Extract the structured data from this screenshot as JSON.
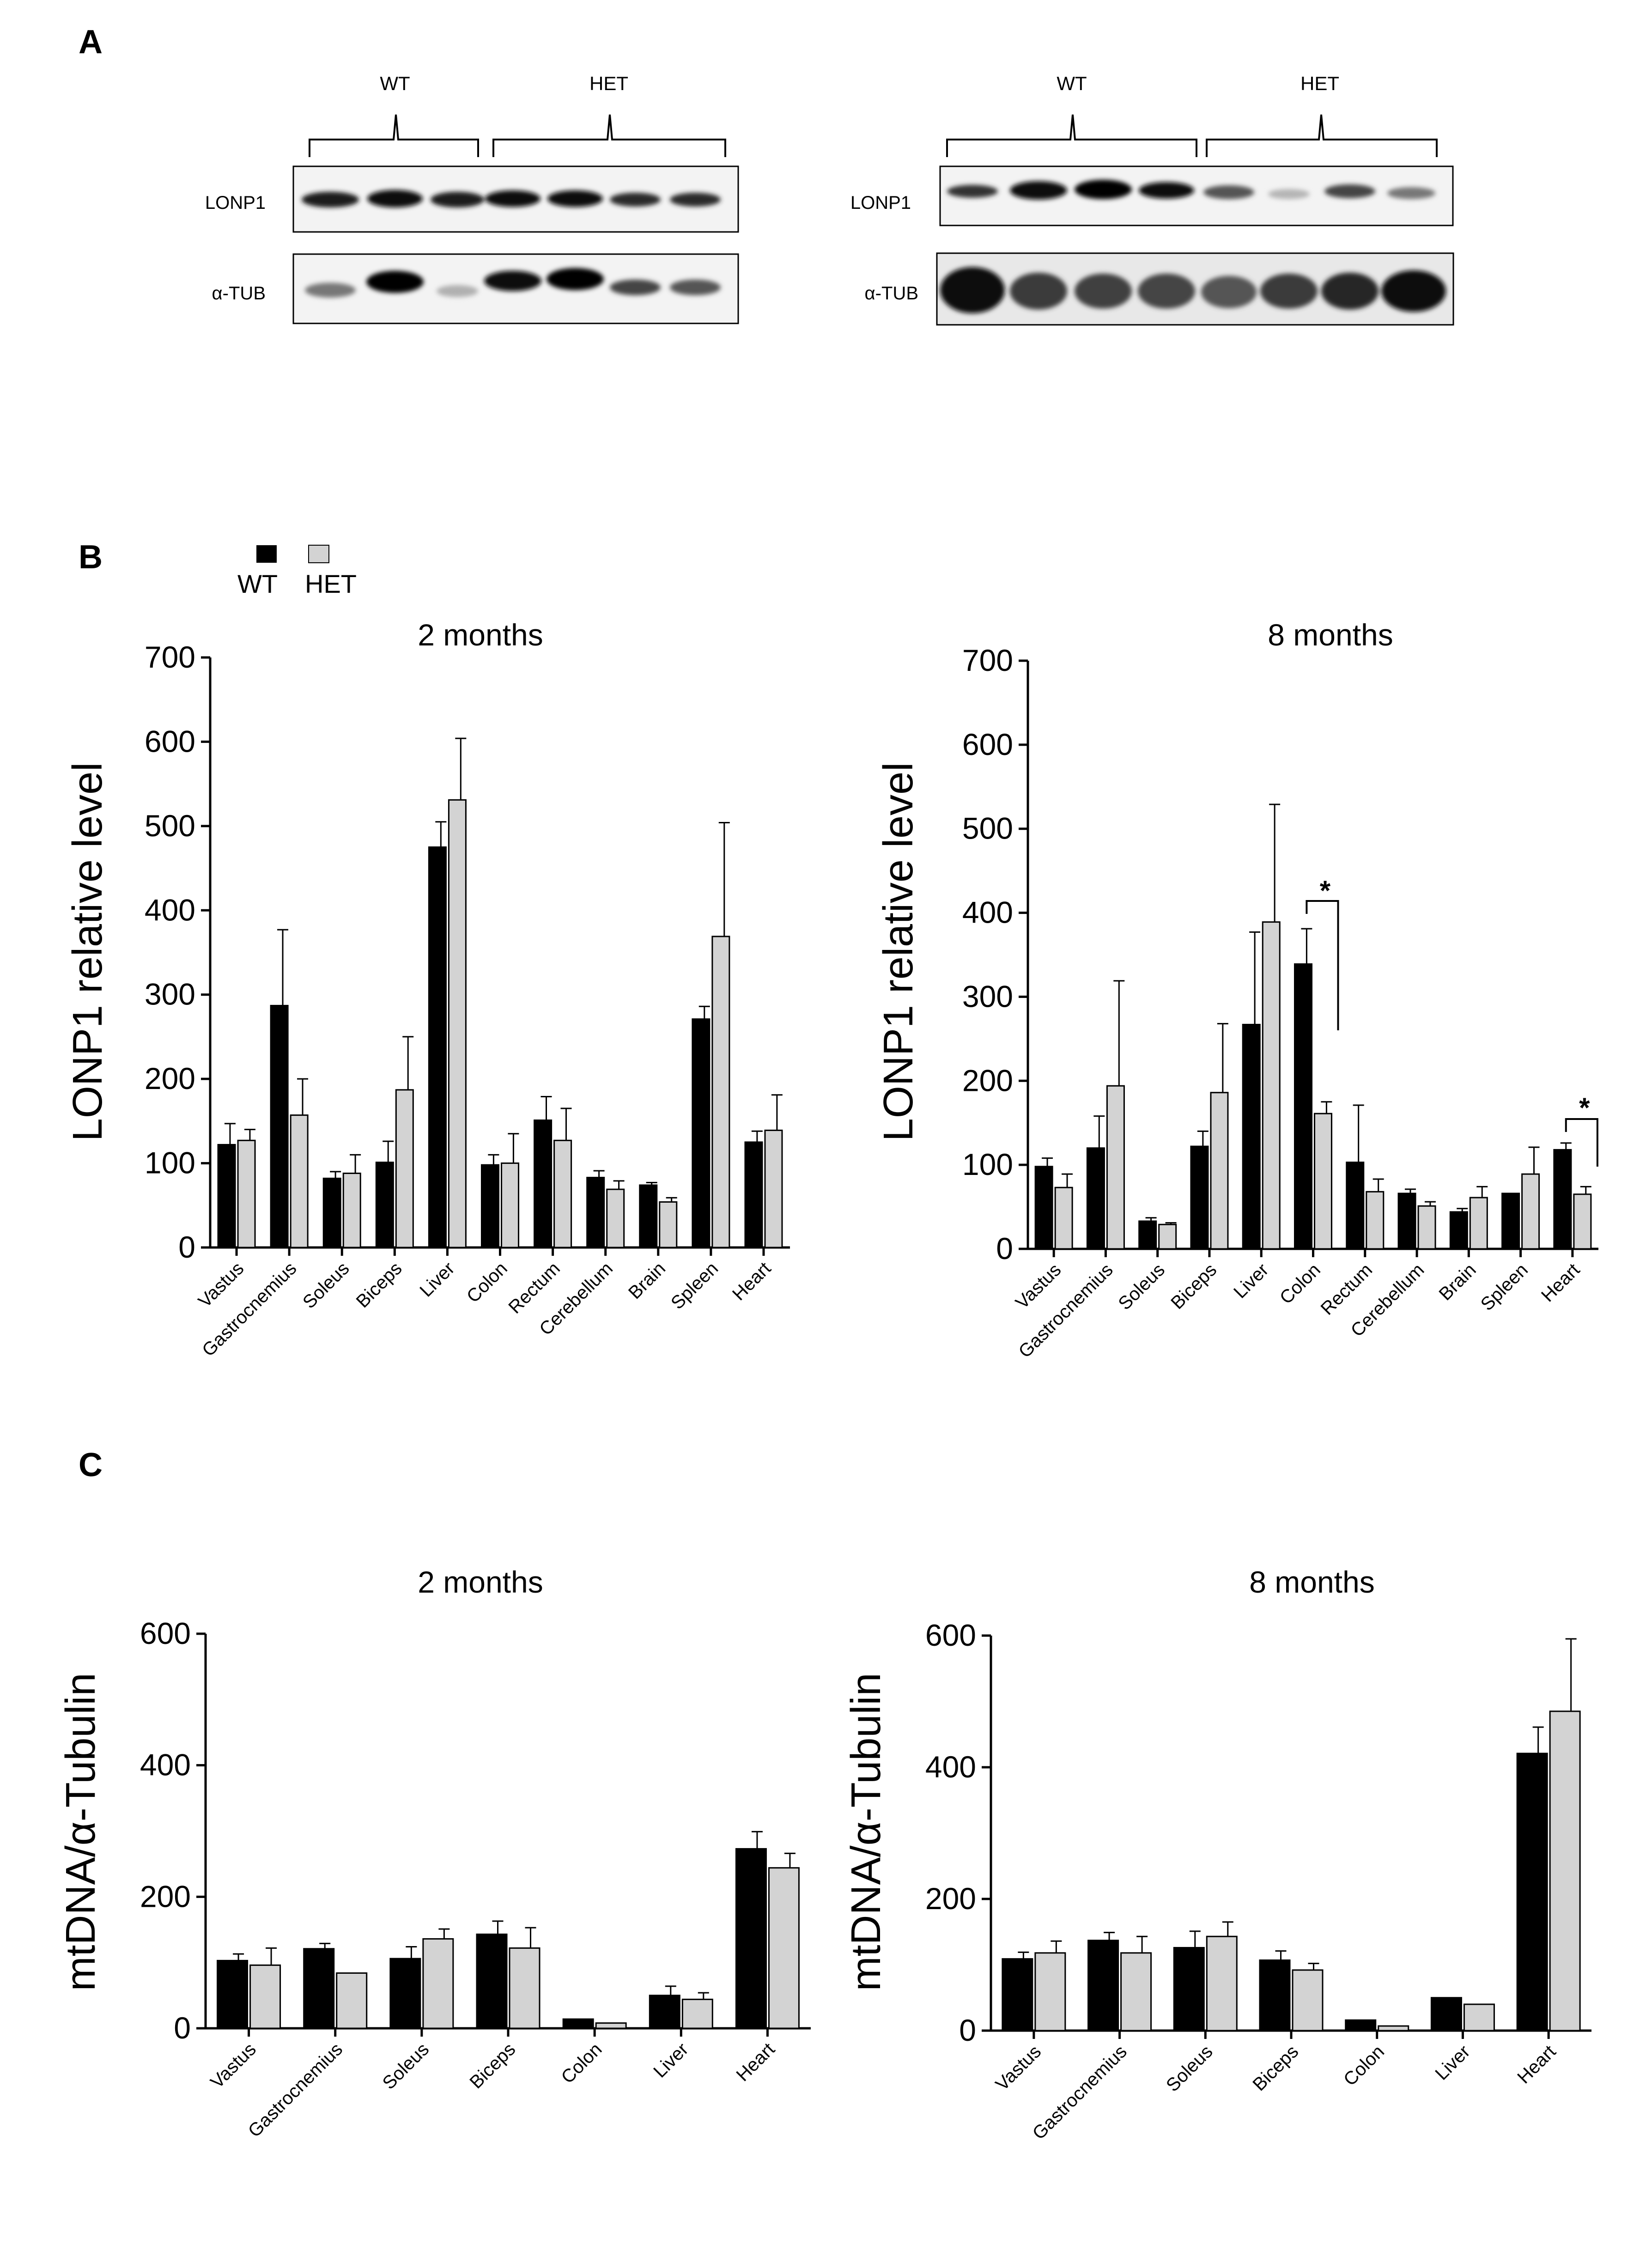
{
  "panels": {
    "a": "A",
    "b": "B",
    "c": "C"
  },
  "colors": {
    "wt": "#000000",
    "het": "#d3d3d3",
    "axis": "#000000"
  },
  "legend": {
    "wt": "WT",
    "het": "HET"
  },
  "blots": [
    {
      "groups": [
        "WT",
        "HET"
      ],
      "rows": [
        "LONP1",
        "α-TUB"
      ],
      "lane_counts": [
        3,
        4
      ]
    },
    {
      "groups": [
        "WT",
        "HET"
      ],
      "rows": [
        "LONP1",
        "α-TUB"
      ],
      "lane_counts": [
        4,
        4
      ]
    }
  ],
  "chart_data": [
    {
      "panel": "B",
      "type": "bar",
      "title": "2 months",
      "ylabel": "LONP1 relative level",
      "xlabel": "",
      "ylim": [
        0,
        700
      ],
      "yticks": [
        0,
        100,
        200,
        300,
        400,
        500,
        600,
        700
      ],
      "categories": [
        "Vastus",
        "Gastrocnemius",
        "Soleus",
        "Biceps",
        "Liver",
        "Colon",
        "Rectum",
        "Cerebellum",
        "Brain",
        "Spleen",
        "Heart"
      ],
      "series": [
        {
          "name": "WT",
          "values": [
            122,
            287,
            82,
            101,
            475,
            98,
            151,
            83,
            74,
            271,
            125
          ],
          "errors": [
            25,
            90,
            8,
            25,
            30,
            12,
            28,
            8,
            3,
            15,
            13
          ]
        },
        {
          "name": "HET",
          "values": [
            127,
            157,
            88,
            187,
            531,
            100,
            127,
            69,
            54,
            369,
            139
          ],
          "errors": [
            13,
            43,
            22,
            63,
            73,
            35,
            38,
            10,
            5,
            135,
            42
          ]
        }
      ],
      "annotations": []
    },
    {
      "panel": "B",
      "type": "bar",
      "title": "8 months",
      "ylabel": "LONP1 relative level",
      "xlabel": "",
      "ylim": [
        0,
        700
      ],
      "yticks": [
        0,
        100,
        200,
        300,
        400,
        500,
        600,
        700
      ],
      "categories": [
        "Vastus",
        "Gastrocnemius",
        "Soleus",
        "Biceps",
        "Liver",
        "Colon",
        "Rectum",
        "Cerebellum",
        "Brain",
        "Spleen",
        "Heart"
      ],
      "series": [
        {
          "name": "WT",
          "values": [
            98,
            120,
            33,
            122,
            267,
            339,
            103,
            66,
            44,
            66,
            118
          ],
          "errors": [
            10,
            38,
            4,
            18,
            110,
            42,
            68,
            5,
            4,
            0,
            8
          ]
        },
        {
          "name": "HET",
          "values": [
            73,
            194,
            29,
            186,
            389,
            161,
            68,
            51,
            61,
            89,
            65
          ],
          "errors": [
            16,
            125,
            2,
            82,
            140,
            14,
            15,
            5,
            13,
            32,
            9
          ]
        }
      ],
      "annotations": [
        {
          "label": "*",
          "category": "Colon"
        },
        {
          "label": "*",
          "category": "Heart"
        }
      ]
    },
    {
      "panel": "C",
      "type": "bar",
      "title": "2 months",
      "ylabel": "mtDNA/α-Tubulin",
      "xlabel": "",
      "ylim": [
        0,
        600
      ],
      "yticks": [
        0,
        200,
        400,
        600
      ],
      "categories": [
        "Vastus",
        "Gastrocnemius",
        "Soleus",
        "Biceps",
        "Colon",
        "Liver",
        "Heart"
      ],
      "series": [
        {
          "name": "WT",
          "values": [
            103,
            121,
            106,
            143,
            14,
            50,
            273
          ],
          "errors": [
            10,
            8,
            18,
            20,
            0,
            14,
            26
          ]
        },
        {
          "name": "HET",
          "values": [
            96,
            84,
            136,
            122,
            8,
            44,
            244
          ],
          "errors": [
            26,
            0,
            15,
            31,
            0,
            10,
            22
          ]
        }
      ],
      "annotations": []
    },
    {
      "panel": "C",
      "type": "bar",
      "title": "8 months",
      "ylabel": "mtDNA/α-Tubulin",
      "xlabel": "",
      "ylim": [
        0,
        600
      ],
      "yticks": [
        0,
        200,
        400,
        600
      ],
      "categories": [
        "Vastus",
        "Gastrocnemius",
        "Soleus",
        "Biceps",
        "Colon",
        "Liver",
        "Heart"
      ],
      "series": [
        {
          "name": "WT",
          "values": [
            109,
            137,
            126,
            107,
            16,
            50,
            421
          ],
          "errors": [
            10,
            12,
            25,
            14,
            0,
            0,
            40
          ]
        },
        {
          "name": "HET",
          "values": [
            118,
            118,
            143,
            92,
            7,
            40,
            485
          ],
          "errors": [
            18,
            25,
            22,
            10,
            0,
            0,
            110
          ]
        }
      ],
      "annotations": []
    }
  ]
}
